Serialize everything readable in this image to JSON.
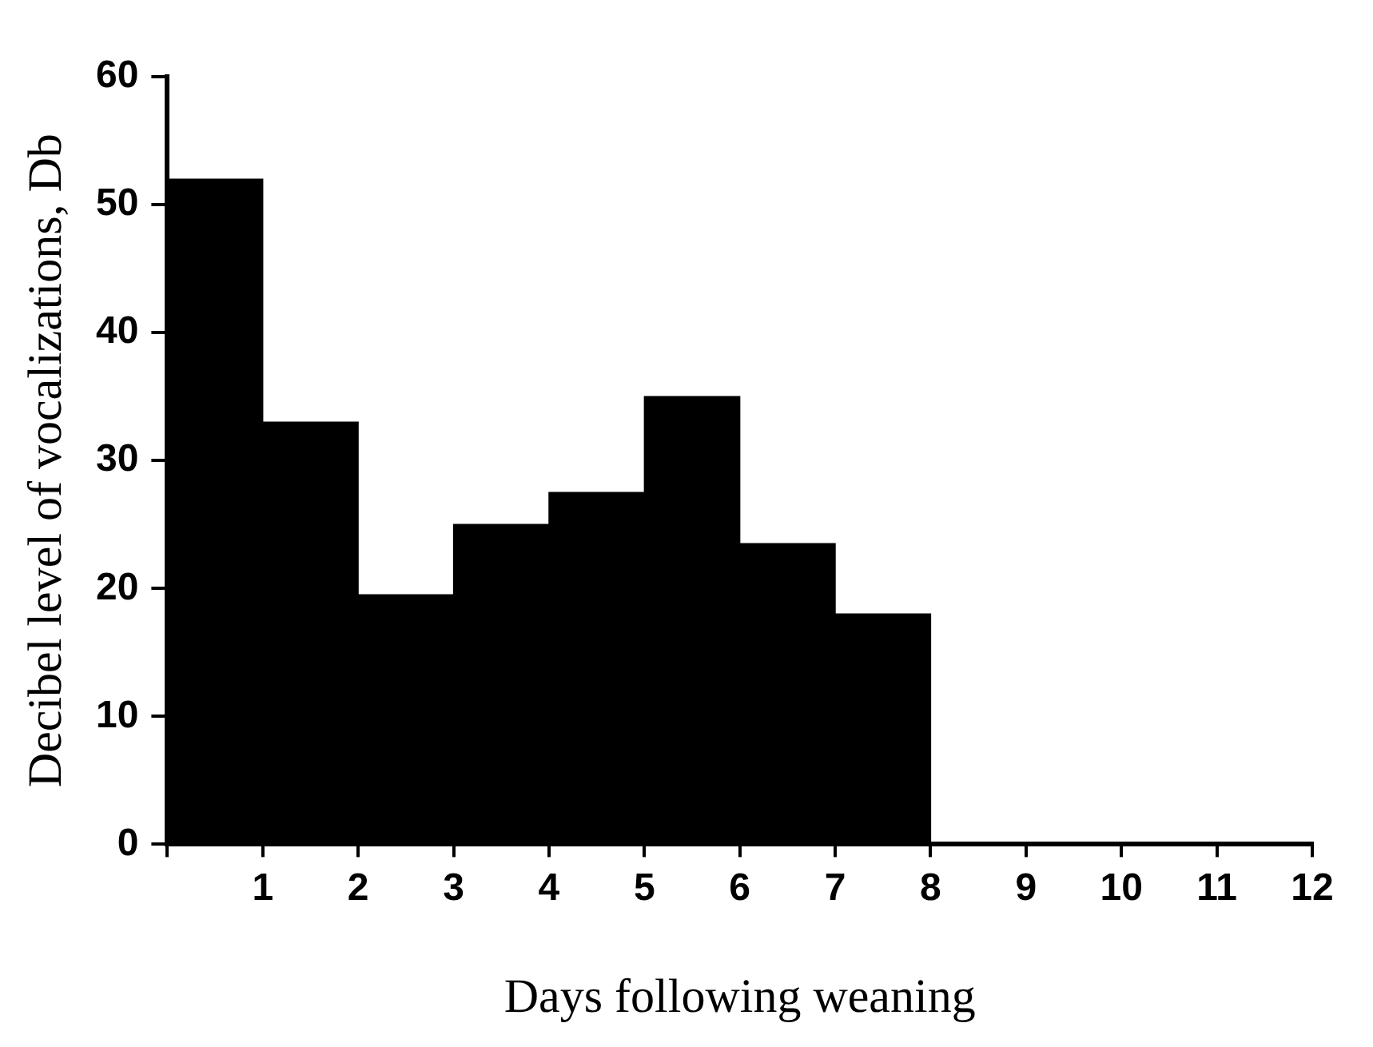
{
  "chart_data": {
    "type": "histogram",
    "xlabel": "Days following weaning",
    "ylabel": "Decibel level of vocalizations, Db",
    "bins": [
      0,
      1,
      2,
      3,
      4,
      5,
      6,
      7,
      8
    ],
    "values": [
      52,
      33,
      19.5,
      25,
      27.5,
      35,
      23.5,
      18
    ],
    "color": "#000000",
    "xlim": [
      0,
      12
    ],
    "xticks": [
      {
        "value": 0,
        "label": null
      },
      1,
      2,
      3,
      4,
      5,
      6,
      7,
      8,
      9,
      10,
      11,
      12
    ],
    "ylim": [
      0,
      60
    ],
    "yticks": [
      0,
      10,
      20,
      30,
      40,
      50,
      60
    ],
    "grid": false,
    "legend": false
  }
}
